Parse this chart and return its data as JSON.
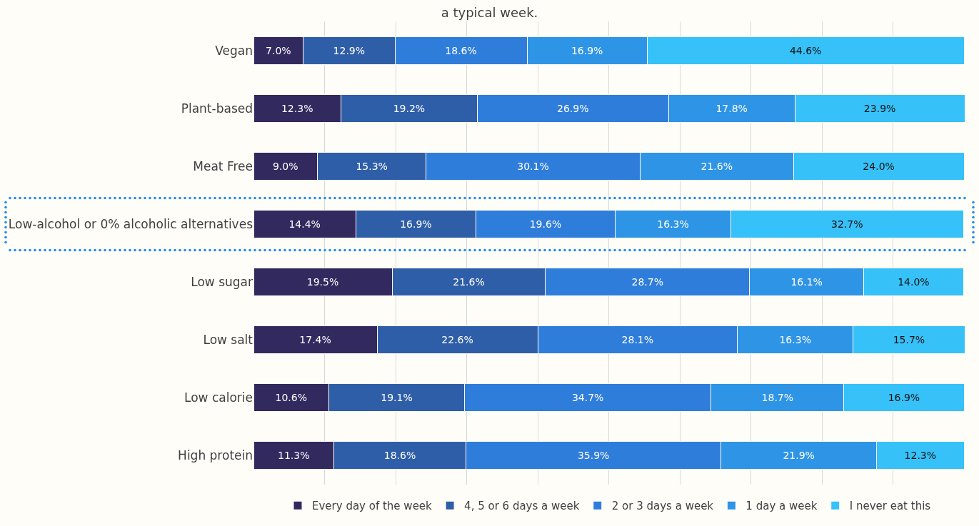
{
  "chart_data": {
    "type": "bar",
    "orientation": "horizontal",
    "stacked": true,
    "title": "a typical week.",
    "categories": [
      "Vegan",
      "Plant-based",
      "Meat Free",
      "Low-alcohol or 0% alcoholic alternatives",
      "Low sugar",
      "Low salt",
      "Low calorie",
      "High protein"
    ],
    "series": [
      {
        "name": "Every day of the week",
        "color": "#32295e",
        "values": [
          7.0,
          12.3,
          9.0,
          14.4,
          19.5,
          17.4,
          10.6,
          11.3
        ],
        "value_labels": [
          "7.0%",
          "12.3%",
          "9.0%",
          "14.4%",
          "19.5%",
          "17.4%",
          "10.6%",
          "11.3%"
        ]
      },
      {
        "name": "4, 5 or 6 days a week",
        "color": "#2f5ea8",
        "values": [
          12.9,
          19.2,
          15.3,
          16.9,
          21.6,
          22.6,
          19.1,
          18.6
        ],
        "value_labels": [
          "12.9%",
          "19.2%",
          "15.3%",
          "16.9%",
          "21.6%",
          "22.6%",
          "19.1%",
          "18.6%"
        ]
      },
      {
        "name": "2 or 3 days a week",
        "color": "#2f7ddb",
        "values": [
          18.6,
          26.9,
          30.1,
          19.6,
          28.7,
          28.1,
          34.7,
          35.9
        ],
        "value_labels": [
          "18.6%",
          "26.9%",
          "30.1%",
          "19.6%",
          "28.7%",
          "28.1%",
          "34.7%",
          "35.9%"
        ]
      },
      {
        "name": "1 day a week",
        "color": "#2e94e6",
        "values": [
          16.9,
          17.8,
          21.6,
          16.3,
          16.1,
          16.3,
          18.7,
          21.9
        ],
        "value_labels": [
          "16.9%",
          "17.8%",
          "21.6%",
          "16.3%",
          "16.1%",
          "16.3%",
          "18.7%",
          "21.9%"
        ]
      },
      {
        "name": "I never eat this",
        "color": "#36c1f8",
        "values": [
          44.6,
          23.9,
          24.0,
          32.7,
          14.0,
          15.7,
          16.9,
          12.3
        ],
        "value_labels": [
          "44.6%",
          "23.9%",
          "24.0%",
          "32.7%",
          "14.0%",
          "15.7%",
          "16.9%",
          "12.3%"
        ]
      }
    ],
    "xlim": [
      0,
      100.1
    ],
    "xticks": [
      {
        "value": 10,
        "label": null
      },
      {
        "value": 20,
        "label": null
      },
      {
        "value": 30,
        "label": null
      },
      {
        "value": 40,
        "label": null
      },
      {
        "value": 50,
        "label": null
      },
      {
        "value": 60,
        "label": null
      },
      {
        "value": 70,
        "label": null
      },
      {
        "value": 80,
        "label": null
      },
      {
        "value": 90,
        "label": null
      }
    ],
    "tick_labels": "y",
    "grid": "x",
    "legend": "bottom"
  }
}
